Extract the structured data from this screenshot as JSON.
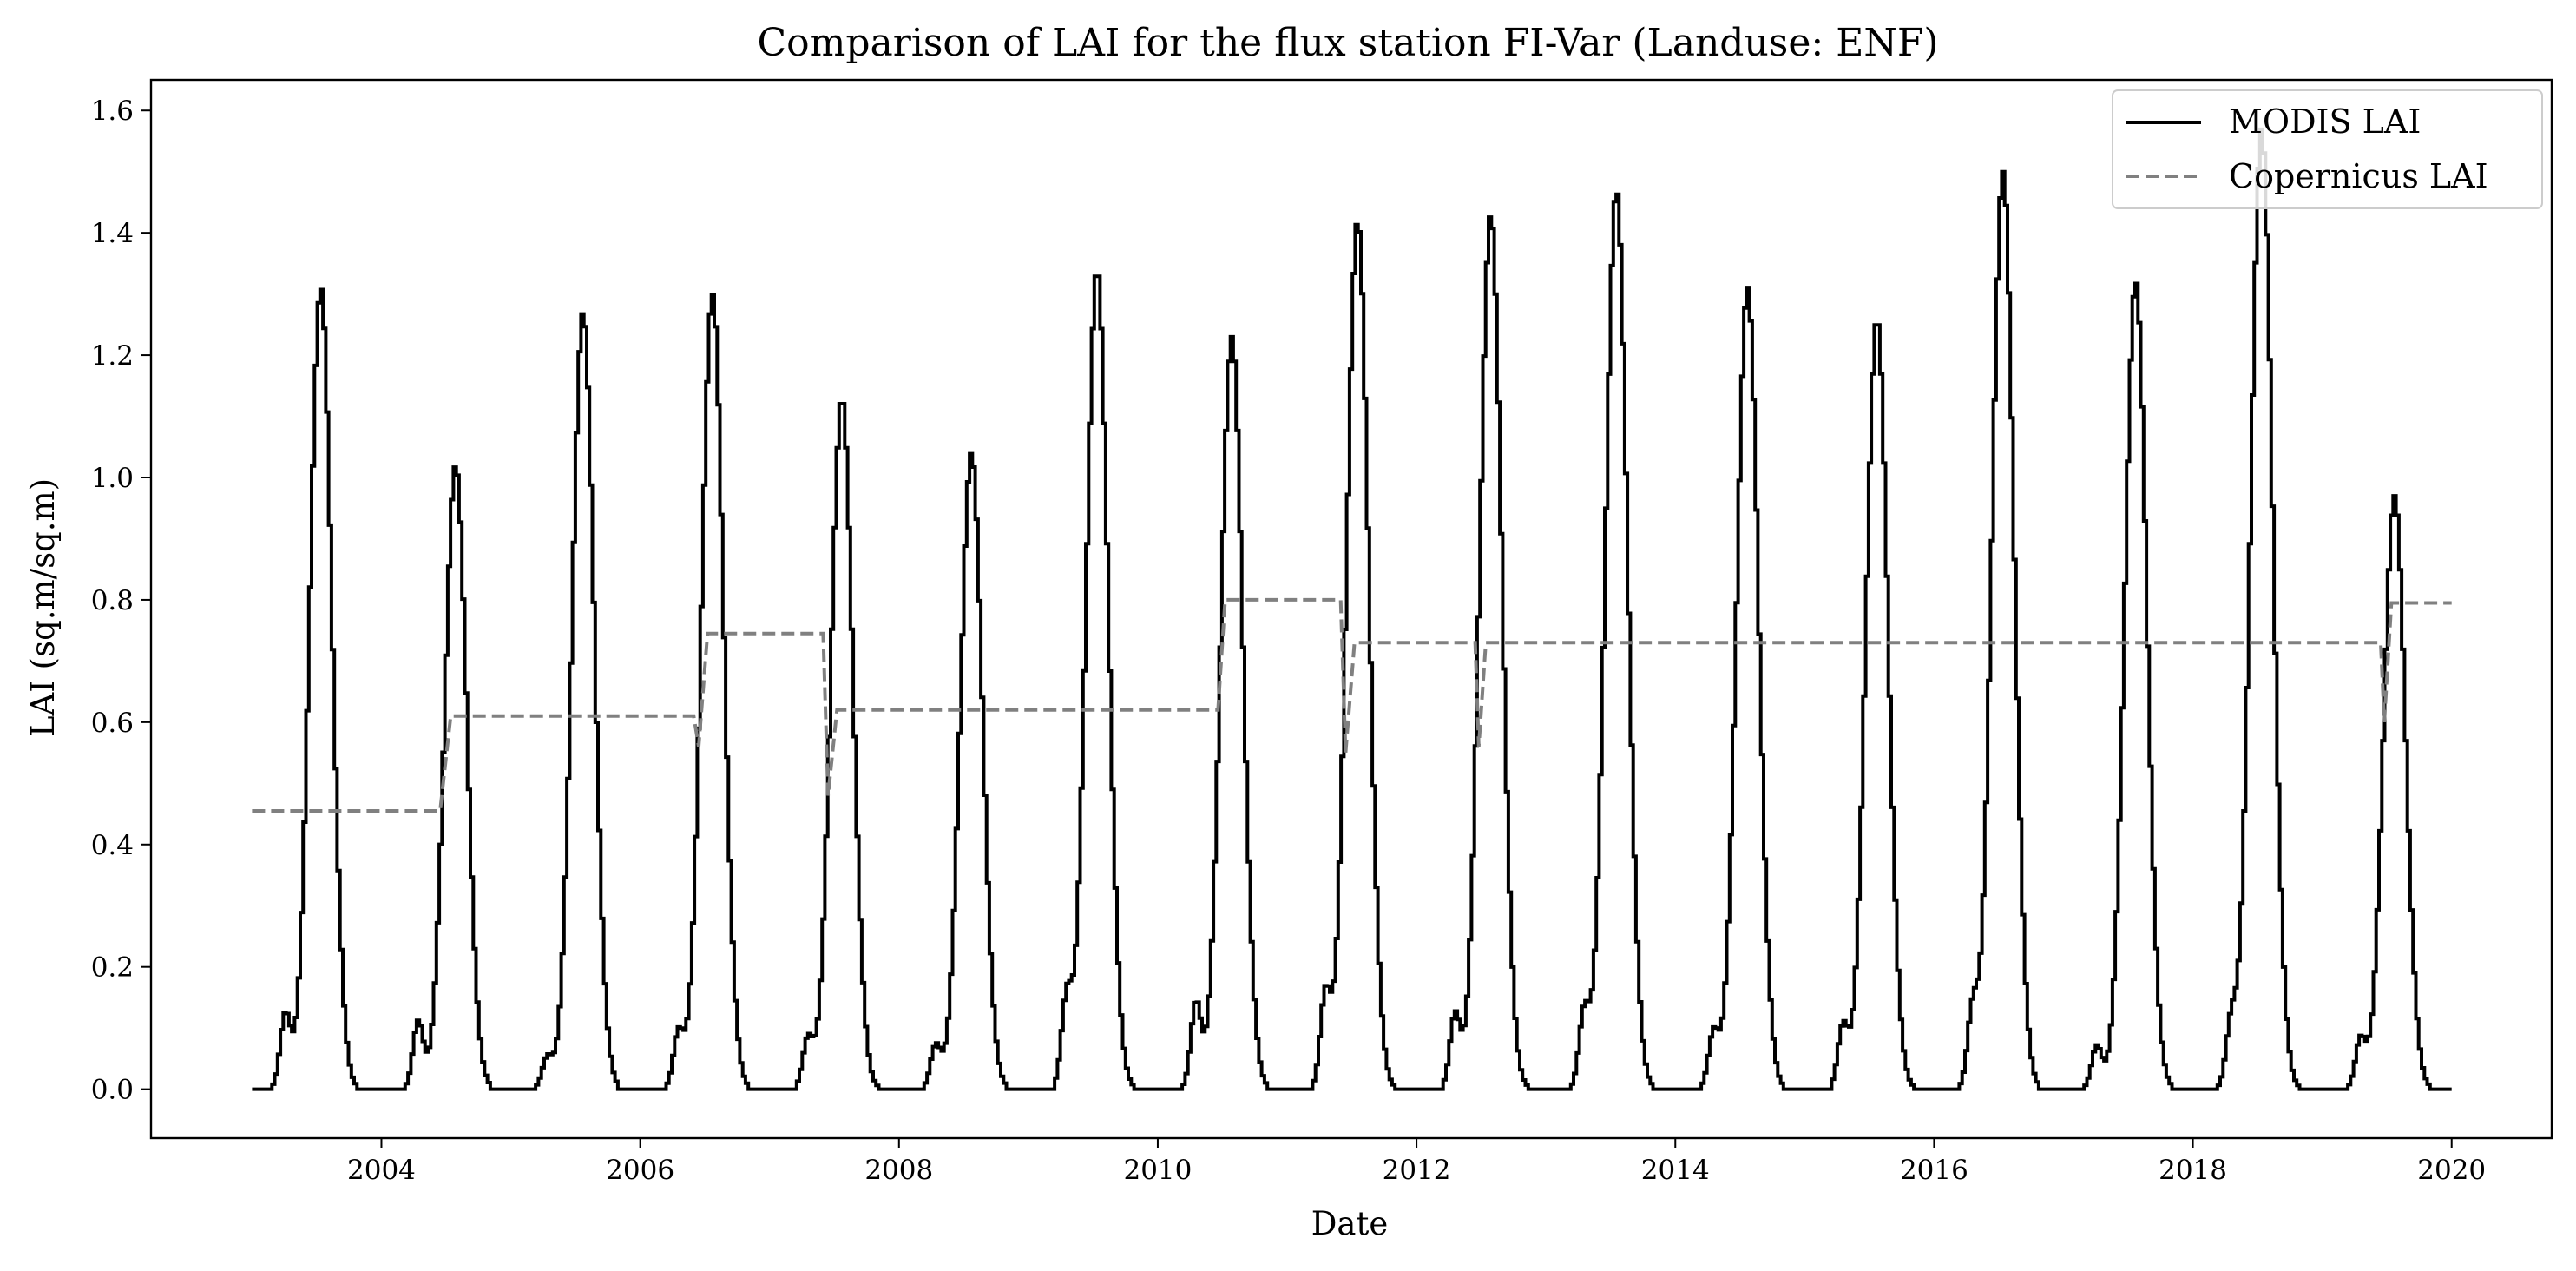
{
  "chart_data": {
    "type": "line",
    "title": "Comparison of LAI for the flux station FI-Var (Landuse: ENF)",
    "xlabel": "Date",
    "ylabel": "LAI (sq.m/sq.m)",
    "xlim": [
      "2002-03-22",
      "2020-10-10"
    ],
    "ylim": [
      -0.08,
      1.65
    ],
    "x_ticks": [
      "2004",
      "2006",
      "2008",
      "2010",
      "2012",
      "2014",
      "2016",
      "2018",
      "2020"
    ],
    "y_ticks": [
      "0.0",
      "0.2",
      "0.4",
      "0.6",
      "0.8",
      "1.0",
      "1.2",
      "1.4",
      "1.6"
    ],
    "grid": false,
    "legend_position": "top-right",
    "series": [
      {
        "name": "MODIS LAI",
        "style": "solid",
        "color": "#000000",
        "peaks": [
          {
            "date": "2003-07-10",
            "value": 1.31
          },
          {
            "date": "2004-07-25",
            "value": 1.02
          },
          {
            "date": "2005-07-20",
            "value": 1.27
          },
          {
            "date": "2006-07-20",
            "value": 1.3
          },
          {
            "date": "2007-07-20",
            "value": 1.13
          },
          {
            "date": "2008-07-20",
            "value": 1.04
          },
          {
            "date": "2009-07-10",
            "value": 1.34
          },
          {
            "date": "2010-07-25",
            "value": 1.23
          },
          {
            "date": "2011-07-15",
            "value": 1.42
          },
          {
            "date": "2012-07-25",
            "value": 1.43
          },
          {
            "date": "2013-07-15",
            "value": 1.47
          },
          {
            "date": "2014-07-20",
            "value": 1.31
          },
          {
            "date": "2015-07-20",
            "value": 1.26
          },
          {
            "date": "2016-07-10",
            "value": 1.5
          },
          {
            "date": "2017-07-20",
            "value": 1.32
          },
          {
            "date": "2018-07-10",
            "value": 1.57
          },
          {
            "date": "2019-07-20",
            "value": 0.97
          }
        ],
        "spring_shoulders": [
          {
            "date": "2003-04-01",
            "value": 0.12
          },
          {
            "date": "2004-04-10",
            "value": 0.11
          },
          {
            "date": "2005-04-10",
            "value": 0.05
          },
          {
            "date": "2006-04-15",
            "value": 0.09
          },
          {
            "date": "2007-04-15",
            "value": 0.08
          },
          {
            "date": "2008-04-10",
            "value": 0.07
          },
          {
            "date": "2009-04-15",
            "value": 0.14
          },
          {
            "date": "2010-04-15",
            "value": 0.14
          },
          {
            "date": "2011-04-15",
            "value": 0.15
          },
          {
            "date": "2012-04-15",
            "value": 0.12
          },
          {
            "date": "2013-04-15",
            "value": 0.12
          },
          {
            "date": "2014-04-15",
            "value": 0.09
          },
          {
            "date": "2015-04-15",
            "value": 0.1
          },
          {
            "date": "2016-04-15",
            "value": 0.12
          },
          {
            "date": "2017-04-01",
            "value": 0.07
          },
          {
            "date": "2018-04-15",
            "value": 0.1
          },
          {
            "date": "2019-04-15",
            "value": 0.08
          }
        ],
        "range": {
          "start": "2003-01-01",
          "end": "2020-01-01",
          "baseline": 0.0
        }
      },
      {
        "name": "Copernicus LAI",
        "style": "dashed",
        "color": "#808080",
        "points": [
          {
            "date": "2003-01-01",
            "value": 0.455
          },
          {
            "date": "2004-06-15",
            "value": 0.455
          },
          {
            "date": "2004-07-15",
            "value": 0.61
          },
          {
            "date": "2006-06-01",
            "value": 0.61
          },
          {
            "date": "2006-06-15",
            "value": 0.56
          },
          {
            "date": "2006-07-10",
            "value": 0.745
          },
          {
            "date": "2007-06-01",
            "value": 0.745
          },
          {
            "date": "2007-06-15",
            "value": 0.48
          },
          {
            "date": "2007-07-10",
            "value": 0.62
          },
          {
            "date": "2010-06-20",
            "value": 0.62
          },
          {
            "date": "2010-07-10",
            "value": 0.8
          },
          {
            "date": "2011-06-01",
            "value": 0.8
          },
          {
            "date": "2011-06-15",
            "value": 0.55
          },
          {
            "date": "2011-07-10",
            "value": 0.73
          },
          {
            "date": "2012-06-15",
            "value": 0.73
          },
          {
            "date": "2012-06-25",
            "value": 0.56
          },
          {
            "date": "2012-07-15",
            "value": 0.73
          },
          {
            "date": "2019-06-15",
            "value": 0.73
          },
          {
            "date": "2019-06-25",
            "value": 0.6
          },
          {
            "date": "2019-07-15",
            "value": 0.795
          },
          {
            "date": "2020-01-01",
            "value": 0.795
          }
        ]
      }
    ]
  }
}
